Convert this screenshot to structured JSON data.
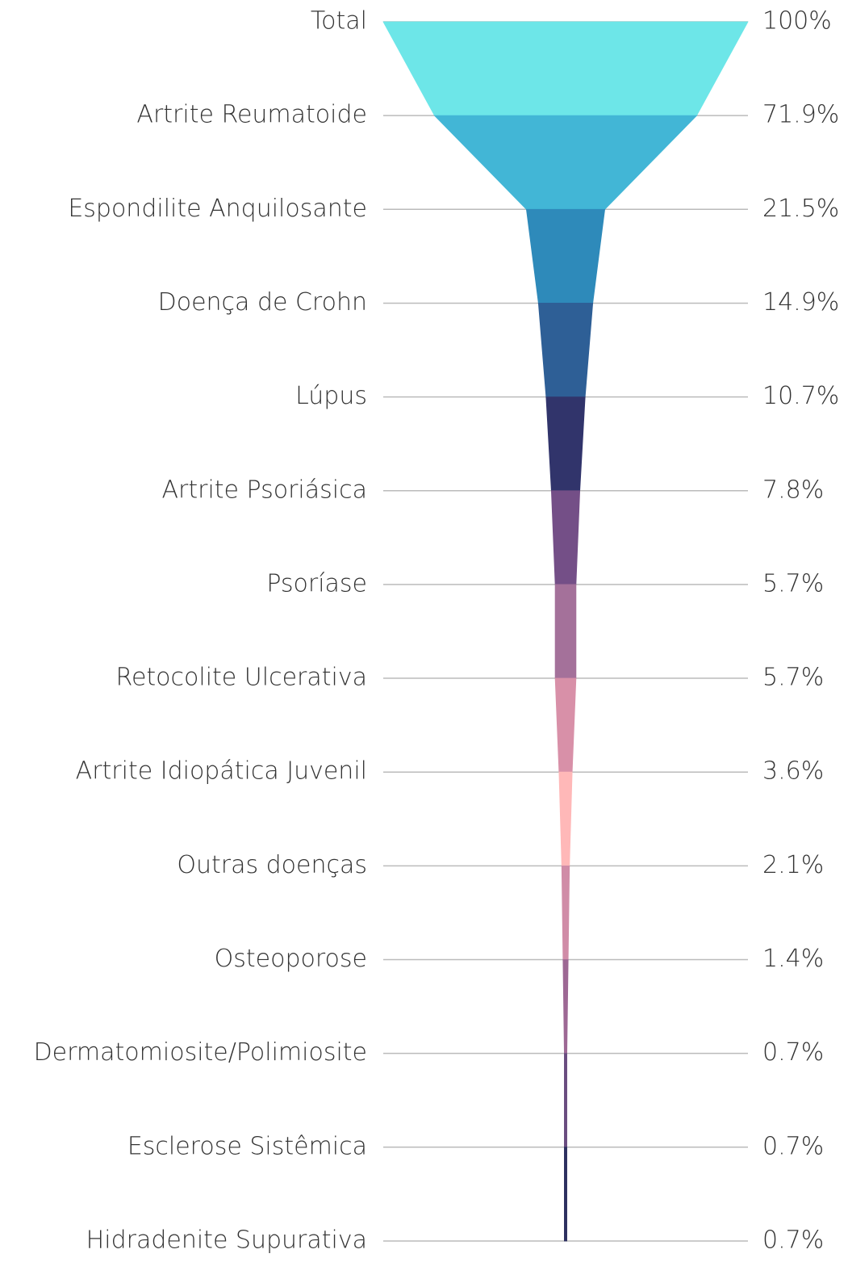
{
  "chart_data": {
    "type": "funnel",
    "categories": [
      "Total",
      "Artrite Reumatoide",
      "Espondilite Anquilosante",
      "Doença de Crohn",
      "Lúpus",
      "Artrite Psoriásica",
      "Psoríase",
      "Retocolite Ulcerativa",
      "Artrite Idiopática Juvenil",
      "Outras doenças",
      "Osteoporose",
      "Dermatomiosite/Polimiosite",
      "Esclerose Sistêmica",
      "Hidradenite Supurativa"
    ],
    "values": [
      100,
      71.9,
      21.5,
      14.9,
      10.7,
      7.8,
      5.7,
      5.7,
      3.6,
      2.1,
      1.4,
      0.7,
      0.7,
      0.7
    ],
    "value_labels": [
      "100%",
      "71.9%",
      "21.5%",
      "14.9%",
      "10.7%",
      "7.8%",
      "5.7%",
      "5.7%",
      "3.6%",
      "2.1%",
      "1.4%",
      "0.7%",
      "0.7%",
      "0.7%"
    ],
    "colors": [
      "#6de6e8",
      "#42b6d6",
      "#2e8aba",
      "#2e5f96",
      "#31346b",
      "#744f87",
      "#a4719a",
      "#d890a8",
      "#ffb8b8",
      "#d08ca7",
      "#9d6894",
      "#6a4d80",
      "#2d3060"
    ]
  }
}
